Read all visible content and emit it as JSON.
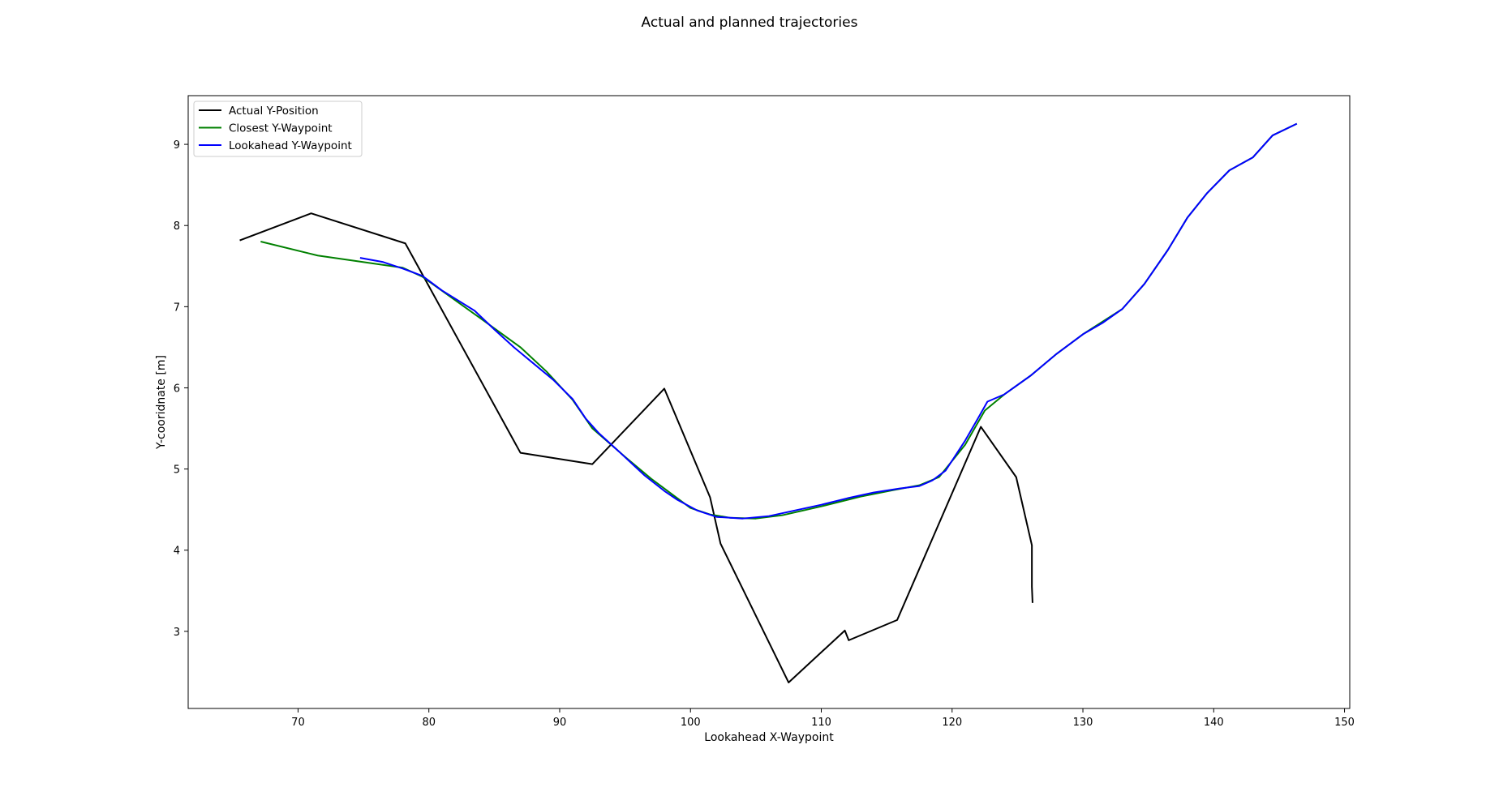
{
  "chart_data": {
    "type": "line",
    "title": "Actual and planned trajectories",
    "xlabel": "Lookahead X-Waypoint",
    "ylabel": "Y-cooridnate [m]",
    "xlim": [
      61.6,
      150.4
    ],
    "ylim": [
      2.05,
      9.6
    ],
    "xticks": [
      70,
      80,
      90,
      100,
      110,
      120,
      130,
      140,
      150
    ],
    "yticks": [
      3,
      4,
      5,
      6,
      7,
      8,
      9
    ],
    "grid": false,
    "legend_position": "upper left",
    "series": [
      {
        "name": "Actual Y-Position",
        "color": "#000000",
        "points": [
          [
            65.6,
            7.82
          ],
          [
            71.0,
            8.15
          ],
          [
            78.2,
            7.78
          ],
          [
            87.0,
            5.2
          ],
          [
            92.5,
            5.06
          ],
          [
            98.0,
            5.99
          ],
          [
            101.5,
            4.65
          ],
          [
            102.3,
            4.08
          ],
          [
            107.5,
            2.37
          ],
          [
            111.8,
            3.01
          ],
          [
            112.1,
            2.89
          ],
          [
            115.8,
            3.14
          ],
          [
            122.2,
            5.52
          ],
          [
            124.9,
            4.9
          ],
          [
            126.1,
            4.06
          ],
          [
            126.1,
            3.55
          ],
          [
            126.15,
            3.36
          ]
        ]
      },
      {
        "name": "Closest Y-Waypoint",
        "color": "#008000",
        "points": [
          [
            67.2,
            7.8
          ],
          [
            71.5,
            7.63
          ],
          [
            78.0,
            7.48
          ],
          [
            79.5,
            7.37
          ],
          [
            84.0,
            6.85
          ],
          [
            87.0,
            6.5
          ],
          [
            89.0,
            6.2
          ],
          [
            91.0,
            5.85
          ],
          [
            92.5,
            5.5
          ],
          [
            95.0,
            5.15
          ],
          [
            97.0,
            4.88
          ],
          [
            98.5,
            4.7
          ],
          [
            100.0,
            4.52
          ],
          [
            101.5,
            4.44
          ],
          [
            103.0,
            4.4
          ],
          [
            105.0,
            4.39
          ],
          [
            107.0,
            4.43
          ],
          [
            110.0,
            4.54
          ],
          [
            113.0,
            4.66
          ],
          [
            115.5,
            4.74
          ],
          [
            117.5,
            4.8
          ],
          [
            119.0,
            4.9
          ],
          [
            121.0,
            5.3
          ],
          [
            122.5,
            5.72
          ],
          [
            124.0,
            5.92
          ],
          [
            126.0,
            6.15
          ],
          [
            128.0,
            6.42
          ],
          [
            130.0,
            6.66
          ],
          [
            133.0,
            6.97
          ],
          [
            134.7,
            7.28
          ],
          [
            136.5,
            7.7
          ],
          [
            138.0,
            8.1
          ],
          [
            139.5,
            8.4
          ],
          [
            141.2,
            8.68
          ],
          [
            143.0,
            8.84
          ],
          [
            144.5,
            9.11
          ],
          [
            146.3,
            9.25
          ]
        ]
      },
      {
        "name": "Lookahead Y-Waypoint",
        "color": "#0000ff",
        "points": [
          [
            74.8,
            7.6
          ],
          [
            76.5,
            7.55
          ],
          [
            78.0,
            7.47
          ],
          [
            79.5,
            7.38
          ],
          [
            81.0,
            7.2
          ],
          [
            82.0,
            7.1
          ],
          [
            83.5,
            6.95
          ],
          [
            85.0,
            6.72
          ],
          [
            86.5,
            6.5
          ],
          [
            88.0,
            6.3
          ],
          [
            89.5,
            6.1
          ],
          [
            91.0,
            5.86
          ],
          [
            92.0,
            5.62
          ],
          [
            93.0,
            5.44
          ],
          [
            94.5,
            5.22
          ],
          [
            96.5,
            4.92
          ],
          [
            98.0,
            4.73
          ],
          [
            99.0,
            4.62
          ],
          [
            100.5,
            4.49
          ],
          [
            102.0,
            4.41
          ],
          [
            104.0,
            4.39
          ],
          [
            106.0,
            4.42
          ],
          [
            108.0,
            4.49
          ],
          [
            110.0,
            4.56
          ],
          [
            112.0,
            4.64
          ],
          [
            114.0,
            4.71
          ],
          [
            116.0,
            4.76
          ],
          [
            117.5,
            4.79
          ],
          [
            118.5,
            4.86
          ],
          [
            119.5,
            4.98
          ],
          [
            121.0,
            5.35
          ],
          [
            122.0,
            5.63
          ],
          [
            122.7,
            5.83
          ],
          [
            124.0,
            5.92
          ],
          [
            126.0,
            6.15
          ],
          [
            128.0,
            6.42
          ],
          [
            130.0,
            6.66
          ],
          [
            131.5,
            6.8
          ],
          [
            133.0,
            6.97
          ],
          [
            134.7,
            7.28
          ],
          [
            136.5,
            7.7
          ],
          [
            138.0,
            8.1
          ],
          [
            139.5,
            8.4
          ],
          [
            141.2,
            8.68
          ],
          [
            143.0,
            8.84
          ],
          [
            144.5,
            9.11
          ],
          [
            146.3,
            9.25
          ]
        ]
      }
    ]
  }
}
